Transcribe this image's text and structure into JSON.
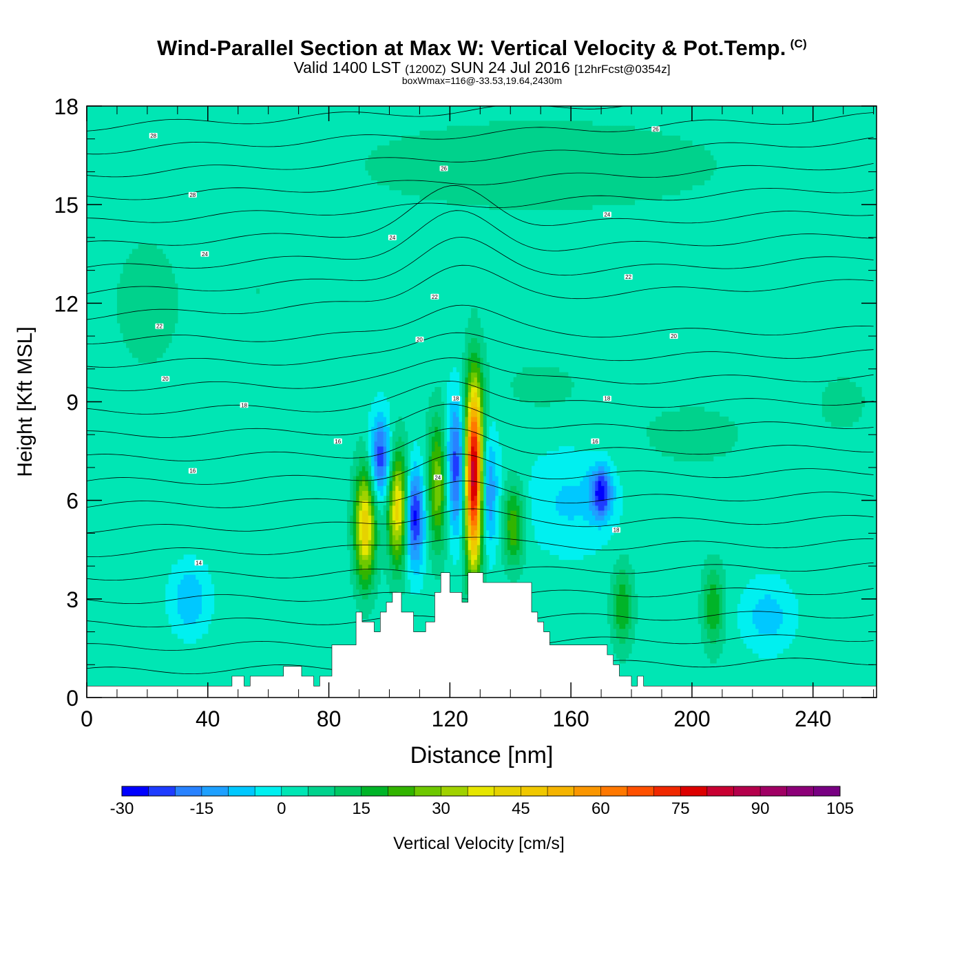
{
  "header": {
    "title": "Wind-Parallel Section at Max W: Vertical Velocity & Pot.Temp.",
    "copyright_mark": "(C)",
    "valid_main": "Valid 1400 LST",
    "valid_zulu": "(1200Z)",
    "valid_date": "SUN 24 Jul 2016",
    "forecast_info": "[12hrFcst@0354z]",
    "box_info": "boxWmax=116@-33.53,19.64,2430m"
  },
  "chart_data": {
    "type": "contour-cross-section",
    "title": "Wind-Parallel Section at Max W: Vertical Velocity & Pot.Temp.",
    "xlabel": "Distance [nm]",
    "ylabel": "Height [Kft MSL]",
    "xlim": [
      0,
      261
    ],
    "ylim": [
      0,
      18
    ],
    "x_ticks": [
      "0",
      "40",
      "80",
      "120",
      "160",
      "200",
      "240"
    ],
    "y_ticks": [
      "0",
      "3",
      "6",
      "9",
      "12",
      "15",
      "18"
    ],
    "colorbar": {
      "label": "Vertical Velocity [cm/s]",
      "min": -30,
      "max": 105,
      "step": 5,
      "tick_labels": [
        "-30",
        "-15",
        "0",
        "15",
        "30",
        "45",
        "60",
        "75",
        "90",
        "105"
      ],
      "colors": [
        "#0000ff",
        "#1e3cff",
        "#2882ff",
        "#1ea0ff",
        "#00c8ff",
        "#00f0f0",
        "#00e6b4",
        "#00d28c",
        "#00c864",
        "#00b428",
        "#32b400",
        "#6ec800",
        "#a0d200",
        "#e6e600",
        "#e6d200",
        "#f0c800",
        "#f5b400",
        "#fa9600",
        "#ff7800",
        "#ff5000",
        "#f02800",
        "#dc0000",
        "#c80032",
        "#b4004b",
        "#a00064",
        "#8c0078",
        "#780082"
      ]
    },
    "updraft_cores": [
      {
        "x": 92,
        "y_range": [
          3.5,
          7.0
        ],
        "peak_cms": 45
      },
      {
        "x": 103,
        "y_range": [
          4.0,
          7.5
        ],
        "peak_cms": 45
      },
      {
        "x": 116,
        "y_range": [
          4.5,
          8.5
        ],
        "peak_cms": 30
      },
      {
        "x": 128,
        "y_range": [
          4.0,
          9.5
        ],
        "peak_cms": 90
      },
      {
        "x": 141,
        "y_range": [
          4.0,
          6.5
        ],
        "peak_cms": 25
      },
      {
        "x": 177,
        "y_range": [
          1.5,
          4.0
        ],
        "peak_cms": 20
      },
      {
        "x": 207,
        "y_range": [
          1.5,
          4.0
        ],
        "peak_cms": 20
      }
    ],
    "downdraft_cores": [
      {
        "x": 108,
        "y_range": [
          4.0,
          7.0
        ],
        "min_cms": -30
      },
      {
        "x": 97,
        "y_range": [
          6.0,
          8.5
        ],
        "min_cms": -25
      },
      {
        "x": 122,
        "y_range": [
          5.0,
          9.0
        ],
        "min_cms": -25
      },
      {
        "x": 132,
        "y_range": [
          4.5,
          8.0
        ],
        "min_cms": -20
      },
      {
        "x": 170,
        "y_range": [
          5.5,
          7.0
        ],
        "min_cms": -25
      },
      {
        "x": 34,
        "y_range": [
          2.0,
          4.0
        ],
        "min_cms": -10
      }
    ],
    "theta_contour_labels": [
      {
        "text": "28",
        "x": 22,
        "y": 17.1
      },
      {
        "text": "28",
        "x": 35,
        "y": 15.3
      },
      {
        "text": "24",
        "x": 39,
        "y": 13.5
      },
      {
        "text": "22",
        "x": 24,
        "y": 11.3
      },
      {
        "text": "20",
        "x": 26,
        "y": 9.7
      },
      {
        "text": "18",
        "x": 52,
        "y": 8.9
      },
      {
        "text": "16",
        "x": 35,
        "y": 6.9
      },
      {
        "text": "14",
        "x": 37,
        "y": 4.1
      },
      {
        "text": "26",
        "x": 118,
        "y": 16.1
      },
      {
        "text": "24",
        "x": 101,
        "y": 14.0
      },
      {
        "text": "22",
        "x": 115,
        "y": 12.2
      },
      {
        "text": "20",
        "x": 110,
        "y": 10.9
      },
      {
        "text": "18",
        "x": 122,
        "y": 9.1
      },
      {
        "text": "16",
        "x": 83,
        "y": 7.8
      },
      {
        "text": "24",
        "x": 116,
        "y": 6.7
      },
      {
        "text": "26",
        "x": 188,
        "y": 17.3
      },
      {
        "text": "24",
        "x": 172,
        "y": 14.7
      },
      {
        "text": "22",
        "x": 179,
        "y": 12.8
      },
      {
        "text": "20",
        "x": 194,
        "y": 11.0
      },
      {
        "text": "18",
        "x": 172,
        "y": 9.1
      },
      {
        "text": "16",
        "x": 168,
        "y": 7.8
      },
      {
        "text": "18",
        "x": 175,
        "y": 5.1
      }
    ],
    "terrain_profile": {
      "x": [
        0,
        48,
        48,
        52,
        52,
        54,
        54,
        65,
        65,
        71,
        71,
        75,
        75,
        77,
        77,
        81,
        81,
        89,
        89,
        91,
        91,
        95,
        95,
        97,
        97,
        99,
        99,
        101,
        101,
        104,
        104,
        108,
        108,
        112,
        112,
        115,
        115,
        117,
        117,
        120,
        120,
        124,
        124,
        126,
        126,
        131,
        131,
        147,
        147,
        149,
        149,
        151,
        151,
        153,
        153,
        172,
        172,
        174,
        174,
        176,
        176,
        180,
        180,
        182,
        182,
        184,
        184,
        200,
        200,
        261
      ],
      "y": [
        0.35,
        0.35,
        0.65,
        0.65,
        0.35,
        0.35,
        0.65,
        0.65,
        0.95,
        0.95,
        0.65,
        0.65,
        0.35,
        0.35,
        0.65,
        0.65,
        1.6,
        1.6,
        2.6,
        2.6,
        2.3,
        2.3,
        2.0,
        2.0,
        2.6,
        2.6,
        2.9,
        2.9,
        3.2,
        3.2,
        2.6,
        2.6,
        2.0,
        2.0,
        2.3,
        2.3,
        3.2,
        3.2,
        3.8,
        3.8,
        3.2,
        3.2,
        2.9,
        2.9,
        3.8,
        3.8,
        3.5,
        3.5,
        2.6,
        2.6,
        2.3,
        2.3,
        2.0,
        2.0,
        1.6,
        1.6,
        1.3,
        1.3,
        1.0,
        1.0,
        0.65,
        0.65,
        0.35,
        0.35,
        0.65,
        0.65,
        0.35,
        0.35,
        0.35,
        0.35
      ]
    }
  }
}
